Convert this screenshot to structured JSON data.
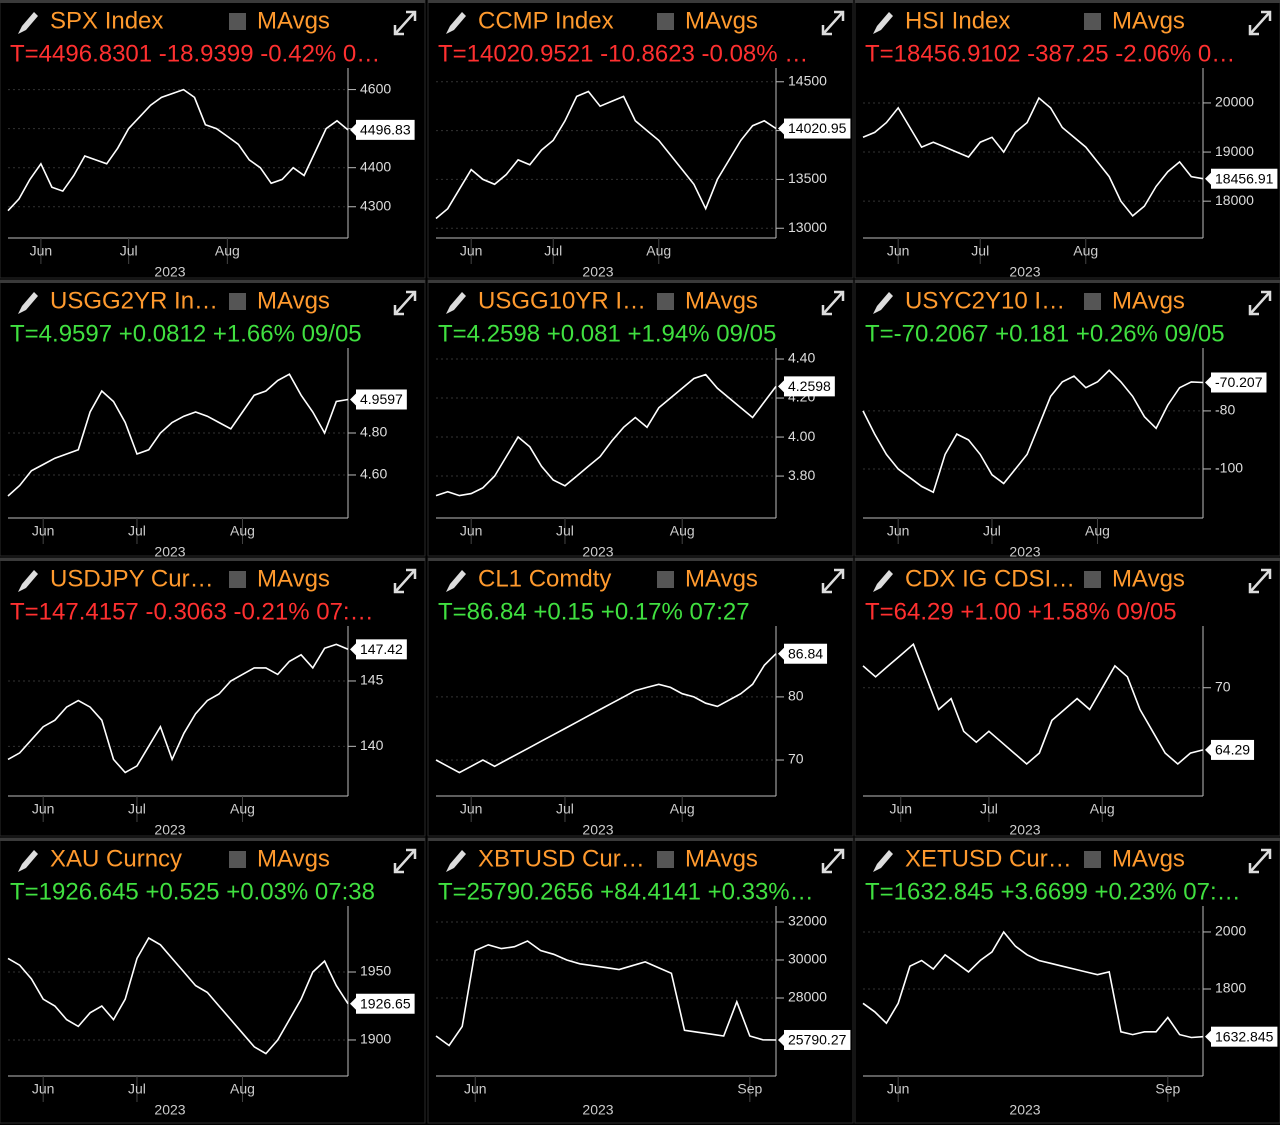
{
  "chart_data": [
    {
      "type": "line",
      "title": "SPX Index",
      "legend_label": "MAvgs",
      "quote": "T=4496.8301 -18.9399 -0.42% 0…",
      "quote_color": "#ff3030",
      "color": "#ffffff",
      "grid": true,
      "values": [
        4290,
        4320,
        4370,
        4410,
        4350,
        4340,
        4380,
        4430,
        4420,
        4410,
        4450,
        4500,
        4530,
        4560,
        4580,
        4590,
        4600,
        4580,
        4510,
        4500,
        4480,
        4460,
        4420,
        4400,
        4360,
        4370,
        4400,
        4380,
        4440,
        4500,
        4520,
        4496.83
      ],
      "xticks": [
        {
          "value": 3,
          "label": "Jun"
        },
        {
          "value": 11,
          "label": "Jul"
        },
        {
          "value": 20,
          "label": "Aug"
        }
      ],
      "x_year": "2023",
      "ylim": [
        4220,
        4645
      ],
      "yticks": [
        4300,
        4400,
        4500,
        4600
      ],
      "last_value": 4496.83
    },
    {
      "type": "line",
      "title": "CCMP Index",
      "legend_label": "MAvgs",
      "quote": "T=14020.9521 -10.8623 -0.08% …",
      "quote_color": "#ff3030",
      "color": "#ffffff",
      "grid": true,
      "values": [
        13100,
        13200,
        13400,
        13600,
        13500,
        13450,
        13550,
        13700,
        13650,
        13800,
        13900,
        14100,
        14350,
        14400,
        14250,
        14300,
        14350,
        14100,
        14000,
        13900,
        13750,
        13600,
        13450,
        13200,
        13500,
        13700,
        13900,
        14050,
        14100,
        14020.95
      ],
      "xticks": [
        {
          "value": 3,
          "label": "Jun"
        },
        {
          "value": 10,
          "label": "Jul"
        },
        {
          "value": 19,
          "label": "Aug"
        }
      ],
      "x_year": "2023",
      "ylim": [
        12900,
        14600
      ],
      "yticks": [
        13000,
        13500,
        14000,
        14500
      ],
      "last_value": 14020.95
    },
    {
      "type": "line",
      "title": "HSI Index",
      "legend_label": "MAvgs",
      "quote": "T=18456.9102 -387.25 -2.06% 0…",
      "quote_color": "#ff3030",
      "color": "#ffffff",
      "grid": true,
      "values": [
        19300,
        19400,
        19600,
        19900,
        19500,
        19100,
        19200,
        19100,
        19000,
        18900,
        19200,
        19300,
        19000,
        19400,
        19600,
        20100,
        19900,
        19500,
        19300,
        19100,
        18800,
        18500,
        18000,
        17700,
        17900,
        18300,
        18600,
        18800,
        18500,
        18456.91
      ],
      "xticks": [
        {
          "value": 3,
          "label": "Jun"
        },
        {
          "value": 10,
          "label": "Jul"
        },
        {
          "value": 19,
          "label": "Aug"
        }
      ],
      "x_year": "2023",
      "ylim": [
        17250,
        20630
      ],
      "yticks": [
        18000,
        19000,
        20000
      ],
      "last_value": 18456.91
    },
    {
      "type": "line",
      "title": "USGG2YR In…",
      "legend_label": "MAvgs",
      "quote": "T=4.9597 +0.0812 +1.66% 09/05",
      "quote_color": "#40e040",
      "color": "#ffffff",
      "grid": true,
      "values": [
        4.5,
        4.55,
        4.62,
        4.65,
        4.68,
        4.7,
        4.72,
        4.9,
        5.0,
        4.95,
        4.85,
        4.7,
        4.72,
        4.8,
        4.85,
        4.88,
        4.9,
        4.88,
        4.85,
        4.82,
        4.9,
        4.98,
        5.0,
        5.05,
        5.08,
        4.98,
        4.9,
        4.8,
        4.95,
        4.9597
      ],
      "xticks": [
        {
          "value": 3,
          "label": "Jun"
        },
        {
          "value": 11,
          "label": "Jul"
        },
        {
          "value": 20,
          "label": "Aug"
        }
      ],
      "x_year": "2023",
      "ylim": [
        4.395,
        5.186
      ],
      "yticks": [
        {
          "value": 4.6,
          "label": "4.60"
        },
        {
          "value": 4.8,
          "label": "4.80"
        }
      ],
      "last_value": 4.9597
    },
    {
      "type": "line",
      "title": "USGG10YR I…",
      "legend_label": "MAvgs",
      "quote": "T=4.2598 +0.081 +1.94% 09/05",
      "quote_color": "#40e040",
      "color": "#ffffff",
      "grid": true,
      "values": [
        3.7,
        3.72,
        3.7,
        3.71,
        3.74,
        3.8,
        3.9,
        4.0,
        3.95,
        3.85,
        3.78,
        3.75,
        3.8,
        3.85,
        3.9,
        3.98,
        4.05,
        4.1,
        4.05,
        4.15,
        4.2,
        4.25,
        4.3,
        4.32,
        4.25,
        4.2,
        4.15,
        4.1,
        4.18,
        4.2598
      ],
      "xticks": [
        {
          "value": 3,
          "label": "Jun"
        },
        {
          "value": 11,
          "label": "Jul"
        },
        {
          "value": 21,
          "label": "Aug"
        }
      ],
      "x_year": "2023",
      "ylim": [
        3.585,
        4.436
      ],
      "yticks": [
        {
          "value": 3.8,
          "label": "3.80"
        },
        {
          "value": 4.0,
          "label": "4.00"
        },
        {
          "value": 4.2,
          "label": "4.20"
        },
        {
          "value": 4.4,
          "label": "4.40"
        }
      ],
      "last_value": 4.2598
    },
    {
      "type": "line",
      "title": "USYC2Y10 I…",
      "legend_label": "MAvgs",
      "quote": "T=-70.2067 +0.181 +0.26% 09/05",
      "quote_color": "#40e040",
      "color": "#ffffff",
      "grid": true,
      "values": [
        -80,
        -88,
        -95,
        -100,
        -103,
        -106,
        -108,
        -95,
        -88,
        -90,
        -95,
        -102,
        -105,
        -100,
        -95,
        -85,
        -75,
        -70,
        -68,
        -72,
        -70,
        -66,
        -70,
        -75,
        -82,
        -86,
        -78,
        -72,
        -70,
        -70.207
      ],
      "xticks": [
        {
          "value": 3,
          "label": "Jun"
        },
        {
          "value": 11,
          "label": "Jul"
        },
        {
          "value": 20,
          "label": "Aug"
        }
      ],
      "x_year": "2023",
      "ylim": [
        -116.9,
        -59.7
      ],
      "yticks": [
        -100,
        -80
      ],
      "last_value": -70.207
    },
    {
      "type": "line",
      "title": "USDJPY Cur…",
      "legend_label": "MAvgs",
      "quote": "T=147.4157 -0.3063 -0.21% 07:…",
      "quote_color": "#ff3030",
      "color": "#ffffff",
      "grid": true,
      "values": [
        139,
        139.5,
        140.5,
        141.5,
        142,
        143,
        143.5,
        143,
        142,
        139,
        138,
        138.5,
        140,
        141.5,
        139,
        141,
        142.5,
        143.5,
        144,
        145,
        145.5,
        146,
        146,
        145.5,
        146.5,
        147,
        146,
        147.5,
        147.8,
        147.42
      ],
      "xticks": [
        {
          "value": 3,
          "label": "Jun"
        },
        {
          "value": 11,
          "label": "Jul"
        },
        {
          "value": 20,
          "label": "Aug"
        }
      ],
      "x_year": "2023",
      "ylim": [
        136.2,
        148.9
      ],
      "yticks": [
        140,
        145
      ],
      "last_value": 147.42
    },
    {
      "type": "line",
      "title": "CL1 Comdty",
      "legend_label": "MAvgs",
      "quote": "T=86.84 +0.15 +0.17% 07:27",
      "quote_color": "#40e040",
      "color": "#ffffff",
      "grid": true,
      "values": [
        70,
        69,
        68,
        69,
        70,
        69,
        70,
        71,
        72,
        73,
        74,
        75,
        76,
        77,
        78,
        79,
        80,
        81,
        81.5,
        82,
        81.5,
        80.5,
        80,
        79,
        78.5,
        79.5,
        80.5,
        82,
        85,
        86.84
      ],
      "xticks": [
        {
          "value": 3,
          "label": "Jun"
        },
        {
          "value": 11,
          "label": "Jul"
        },
        {
          "value": 21,
          "label": "Aug"
        }
      ],
      "x_year": "2023",
      "ylim": [
        64.3,
        90.6
      ],
      "yticks": [
        70,
        80
      ],
      "last_value": 86.84
    },
    {
      "type": "line",
      "title": "CDX IG CDSI…",
      "legend_label": "MAvgs",
      "quote": "T=64.29 +1.00 +1.58% 09/05",
      "quote_color": "#ff3030",
      "color": "#ffffff",
      "grid": true,
      "values": [
        72,
        71,
        72,
        73,
        74,
        71,
        68,
        69,
        66,
        65,
        66,
        65,
        64,
        63,
        64,
        67,
        68,
        69,
        68,
        70,
        72,
        71,
        68,
        66,
        64,
        63,
        64,
        64.29
      ],
      "xticks": [
        {
          "value": 3,
          "label": "Jun"
        },
        {
          "value": 10,
          "label": "Jul"
        },
        {
          "value": 19,
          "label": "Aug"
        }
      ],
      "x_year": "2023",
      "ylim": [
        60.06,
        75.3
      ],
      "yticks": [
        70
      ],
      "last_value": 64.29
    },
    {
      "type": "line",
      "title": "XAU Curncy",
      "legend_label": "MAvgs",
      "quote": "T=1926.645 +0.525 +0.03% 07:38",
      "quote_color": "#40e040",
      "color": "#ffffff",
      "grid": true,
      "values": [
        1960,
        1955,
        1945,
        1930,
        1925,
        1915,
        1910,
        1920,
        1925,
        1915,
        1930,
        1960,
        1975,
        1970,
        1960,
        1950,
        1940,
        1935,
        1925,
        1915,
        1905,
        1895,
        1890,
        1900,
        1915,
        1930,
        1950,
        1958,
        1940,
        1926.65
      ],
      "xticks": [
        {
          "value": 3,
          "label": "Jun"
        },
        {
          "value": 11,
          "label": "Jul"
        },
        {
          "value": 20,
          "label": "Aug"
        }
      ],
      "x_year": "2023",
      "ylim": [
        1873.5,
        1995.6
      ],
      "yticks": [
        1900,
        1950
      ],
      "last_value": 1926.65
    },
    {
      "type": "line",
      "title": "XBTUSD Cur…",
      "legend_label": "MAvgs",
      "quote": "T=25790.2656 +84.4141 +0.33%…",
      "quote_color": "#40e040",
      "color": "#ffffff",
      "grid": true,
      "values": [
        26000,
        25500,
        26500,
        30500,
        30800,
        30600,
        30700,
        31000,
        30500,
        30300,
        30000,
        29800,
        29700,
        29600,
        29500,
        29700,
        29900,
        29600,
        29300,
        26300,
        26200,
        26100,
        26000,
        27800,
        26000,
        25800,
        25790.27
      ],
      "xticks": [
        {
          "value": 3,
          "label": "Jun"
        },
        {
          "value": 24,
          "label": "Sep"
        }
      ],
      "x_year": "2023",
      "ylim": [
        23895,
        32630
      ],
      "yticks": [
        28000,
        30000,
        32000
      ],
      "last_value": 25790.27
    },
    {
      "type": "line",
      "title": "XETUSD Cur…",
      "legend_label": "MAvgs",
      "quote": "T=1632.845 +3.6699 +0.23% 07:…",
      "quote_color": "#40e040",
      "color": "#ffffff",
      "grid": true,
      "values": [
        1750,
        1720,
        1680,
        1750,
        1880,
        1900,
        1870,
        1920,
        1890,
        1860,
        1900,
        1930,
        2000,
        1950,
        1920,
        1900,
        1890,
        1880,
        1870,
        1860,
        1850,
        1860,
        1650,
        1640,
        1650,
        1650,
        1700,
        1640,
        1630,
        1632.845
      ],
      "xticks": [
        {
          "value": 3,
          "label": "Jun"
        },
        {
          "value": 26,
          "label": "Sep"
        }
      ],
      "x_year": "2023",
      "ylim": [
        1495,
        2077
      ],
      "yticks": [
        1800,
        2000
      ],
      "last_value": 1632.845
    }
  ]
}
